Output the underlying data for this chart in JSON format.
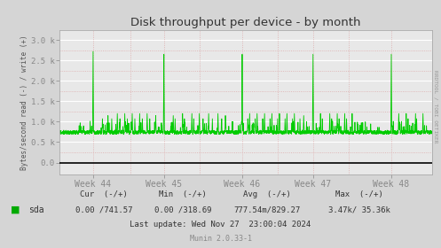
{
  "title": "Disk throughput per device - by month",
  "ylabel": "Bytes/second read (-) / write (+)",
  "right_label": "RRDTOOL / TOBI OETIKER",
  "bg_color": "#d5d5d5",
  "plot_bg_color": "#e8e8e8",
  "grid_color_major": "#ffffff",
  "grid_color_minor": "#ddaaaa",
  "line_color": "#00cc00",
  "zero_line_color": "#000000",
  "ylim_low": -0.3,
  "ylim_high": 3.25,
  "yticks": [
    0.0,
    0.5,
    1.0,
    1.5,
    2.0,
    2.5,
    3.0
  ],
  "ytick_labels": [
    "0.0",
    "0.5 k",
    "1.0 k",
    "1.5 k",
    "2.0 k",
    "2.5 k",
    "3.0 k"
  ],
  "minor_yticks": [
    0.25,
    0.75,
    1.25,
    1.75,
    2.25,
    2.75
  ],
  "xtick_positions": [
    0.09,
    0.28,
    0.49,
    0.68,
    0.89
  ],
  "xtick_labels": [
    "Week 44",
    "Week 45",
    "Week 46",
    "Week 47",
    "Week 48"
  ],
  "vgrid_positions": [
    0.09,
    0.19,
    0.28,
    0.375,
    0.49,
    0.585,
    0.68,
    0.775,
    0.89
  ],
  "legend_color": "#00aa00",
  "legend_label": "sda",
  "cur_label": "Cur  (-/+)",
  "cur_val": "0.00 /741.57",
  "min_label": "Min  (-/+)",
  "min_val": "0.00 /318.69",
  "avg_label": "Avg  (-/+)",
  "avg_val": "777.54m/829.27",
  "max_label": "Max  (-/+)",
  "max_val": "3.47k/ 35.36k",
  "last_update": "Last update: Wed Nov 27  23:00:04 2024",
  "munin_version": "Munin 2.0.33-1",
  "base_value": 0.72,
  "spike_positions": [
    0.09,
    0.13,
    0.155,
    0.175,
    0.195,
    0.215,
    0.235,
    0.258,
    0.28,
    0.305,
    0.33,
    0.355,
    0.375,
    0.4,
    0.425,
    0.445,
    0.49,
    0.51,
    0.53,
    0.55,
    0.57,
    0.59,
    0.61,
    0.63,
    0.655,
    0.68,
    0.7,
    0.725,
    0.745,
    0.765,
    0.785,
    0.89,
    0.91,
    0.93,
    0.955,
    0.975
  ],
  "spike_heights": [
    2.72,
    1.15,
    1.2,
    1.2,
    1.2,
    1.2,
    1.2,
    1.15,
    2.65,
    1.15,
    1.2,
    1.2,
    1.2,
    1.2,
    1.2,
    1.15,
    2.65,
    1.2,
    1.2,
    1.2,
    1.2,
    1.2,
    1.2,
    1.2,
    1.15,
    2.65,
    1.2,
    1.2,
    1.2,
    1.2,
    1.2,
    2.65,
    1.2,
    1.2,
    1.2,
    1.2
  ],
  "mid_spike_positions": [
    0.115,
    0.14,
    0.162,
    0.182,
    0.202,
    0.222,
    0.242,
    0.31,
    0.335,
    0.36,
    0.385,
    0.41,
    0.435,
    0.505,
    0.525,
    0.545,
    0.565,
    0.585,
    0.605,
    0.625,
    0.645,
    0.705,
    0.73,
    0.75,
    0.77,
    0.91,
    0.935,
    0.958
  ],
  "mid_spike_heights": [
    1.1,
    1.1,
    1.1,
    1.1,
    1.1,
    1.1,
    1.1,
    1.1,
    1.1,
    1.1,
    1.1,
    1.1,
    1.1,
    1.1,
    1.1,
    1.1,
    1.1,
    1.1,
    1.1,
    1.1,
    1.1,
    1.1,
    1.1,
    1.1,
    1.1,
    1.1,
    1.1,
    1.1
  ]
}
